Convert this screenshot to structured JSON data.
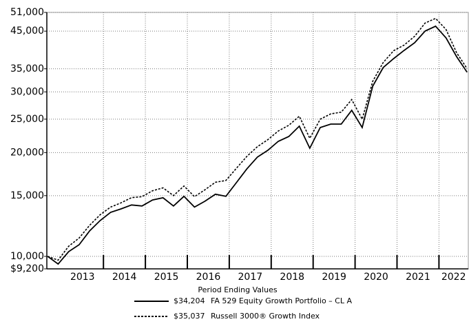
{
  "chart_data": {
    "type": "line",
    "log_scale": true,
    "grid": true,
    "x": [
      2012.67,
      2012.92,
      2013.17,
      2013.42,
      2013.67,
      2013.92,
      2014.17,
      2014.42,
      2014.67,
      2014.92,
      2015.17,
      2015.42,
      2015.67,
      2015.92,
      2016.17,
      2016.42,
      2016.67,
      2016.92,
      2017.17,
      2017.42,
      2017.67,
      2017.92,
      2018.17,
      2018.42,
      2018.67,
      2018.92,
      2019.17,
      2019.42,
      2019.67,
      2019.92,
      2020.17,
      2020.42,
      2020.67,
      2020.92,
      2021.17,
      2021.42,
      2021.67,
      2021.92,
      2022.17,
      2022.42,
      2022.67
    ],
    "xlim": [
      2012.65,
      2022.7
    ],
    "xticks": [
      2014,
      2015,
      2016,
      2017,
      2018,
      2019,
      2020,
      2021,
      2022
    ],
    "year_labels": [
      "2013",
      "2014",
      "2015",
      "2016",
      "2017",
      "2018",
      "2019",
      "2020",
      "2021",
      "2022"
    ],
    "ylim": [
      9200,
      51000
    ],
    "yticks": [
      {
        "value": 9200,
        "label": "$9,200"
      },
      {
        "value": 10000,
        "label": "10,000"
      },
      {
        "value": 15000,
        "label": "15,000"
      },
      {
        "value": 20000,
        "label": "20,000"
      },
      {
        "value": 25000,
        "label": "25,000"
      },
      {
        "value": 30000,
        "label": "30,000"
      },
      {
        "value": 35000,
        "label": "35,000"
      },
      {
        "value": 45000,
        "label": "45,000"
      },
      {
        "value": 51000,
        "label": "51,000"
      }
    ],
    "legend_title": "Period Ending Values",
    "series": [
      {
        "name": "FA 529 Equity Growth Portfolio – CL A",
        "color": "#000000",
        "style": "solid",
        "end_value_label": "$34,204",
        "values": [
          10000,
          9500,
          10320,
          10810,
          11850,
          12700,
          13420,
          13730,
          14100,
          14000,
          14570,
          14790,
          14000,
          14930,
          13900,
          14450,
          15150,
          14930,
          16360,
          17940,
          19400,
          20310,
          21560,
          22270,
          23860,
          20590,
          23640,
          24190,
          24190,
          26530,
          23640,
          31160,
          35280,
          37460,
          39570,
          41650,
          45030,
          46520,
          43010,
          37990,
          34204
        ]
      },
      {
        "name": "Russell 3000® Growth Index",
        "color": "#000000",
        "style": "dotted",
        "end_value_label": "$35,037",
        "values": [
          10000,
          9750,
          10700,
          11300,
          12300,
          13200,
          13900,
          14300,
          14800,
          14900,
          15500,
          15800,
          15000,
          16000,
          14900,
          15600,
          16400,
          16600,
          18000,
          19500,
          20800,
          21800,
          23100,
          24000,
          25500,
          22000,
          25000,
          25900,
          26200,
          28500,
          25000,
          32200,
          36500,
          39500,
          41000,
          43500,
          47500,
          49000,
          45500,
          39000,
          35037
        ]
      }
    ]
  }
}
